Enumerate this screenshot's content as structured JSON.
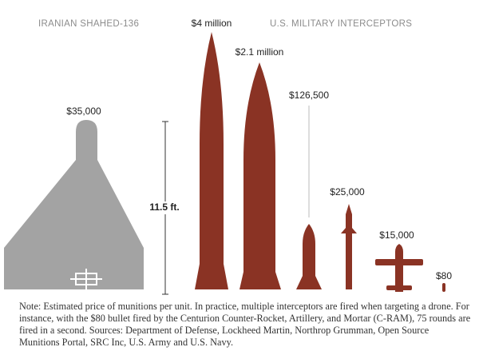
{
  "headers": {
    "drone": "IRANIAN SHAHED-136",
    "interceptors": "U.S. MILITARY INTERCEPTORS"
  },
  "items": [
    {
      "price": "$35,000"
    },
    {
      "price": "$4 million"
    },
    {
      "price": "$2.1 million"
    },
    {
      "price": "$126,500"
    },
    {
      "price": "$25,000"
    },
    {
      "price": "$15,000"
    },
    {
      "price": "$80"
    }
  ],
  "scale": {
    "label": "11.5 ft."
  },
  "note": "Note: Estimated price of munitions per unit. In practice, multiple interceptors are fired when targeting a drone. For instance, with the $80 bullet fired by the Centurion Counter-Rocket, Artillery, and Mortar (C-RAM), 75 rounds are fired in a second. Sources: Department of Defense, Lockheed Martin, Northrop Grumman, Open Source Munitions Portal, SRC Inc, U.S. Army and U.S. Navy."
}
